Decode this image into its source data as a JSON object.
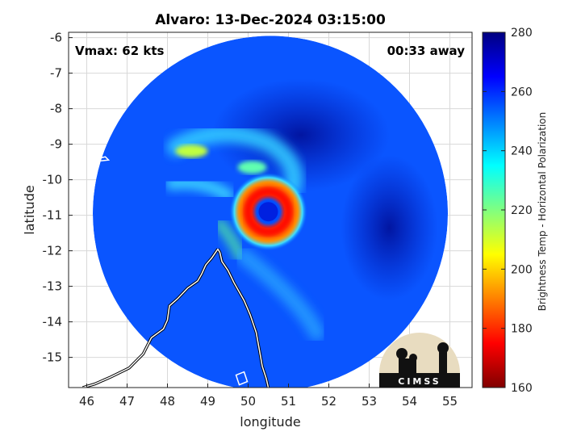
{
  "chart_data": {
    "type": "heatmap",
    "title": "Alvaro: 13-Dec-2024 03:15:00",
    "annotations": {
      "left": "Vmax: 62 kts",
      "right": "00:33 away"
    },
    "xlabel": "longitude",
    "ylabel": "latitude",
    "xlim": [
      45.55,
      55.55
    ],
    "ylim": [
      -15.85,
      -5.85
    ],
    "xticks": [
      46,
      47,
      48,
      49,
      50,
      51,
      52,
      53,
      54,
      55
    ],
    "yticks": [
      -6,
      -7,
      -8,
      -9,
      -10,
      -11,
      -12,
      -13,
      -14,
      -15
    ],
    "grid": true,
    "colorbar": {
      "label": "Brightness Temp - Horizontal Polarization",
      "min": 160,
      "max": 280,
      "ticks": [
        160,
        180,
        200,
        220,
        240,
        260,
        280
      ],
      "colormap": [
        "#800000",
        "#ff0000",
        "#ff8000",
        "#ffff00",
        "#80ff80",
        "#00ffff",
        "#0080ff",
        "#0000ff",
        "#000080"
      ]
    },
    "swath": {
      "center_lon": 50.55,
      "center_lat": -10.95,
      "radius_deg": 5.0
    },
    "storm": {
      "eye_lon": 50.5,
      "eye_lat": -10.9,
      "eye_tb": 258,
      "eyewall_tb": 175,
      "background_tb": 262
    },
    "logo": {
      "text": "CIMSS"
    }
  }
}
